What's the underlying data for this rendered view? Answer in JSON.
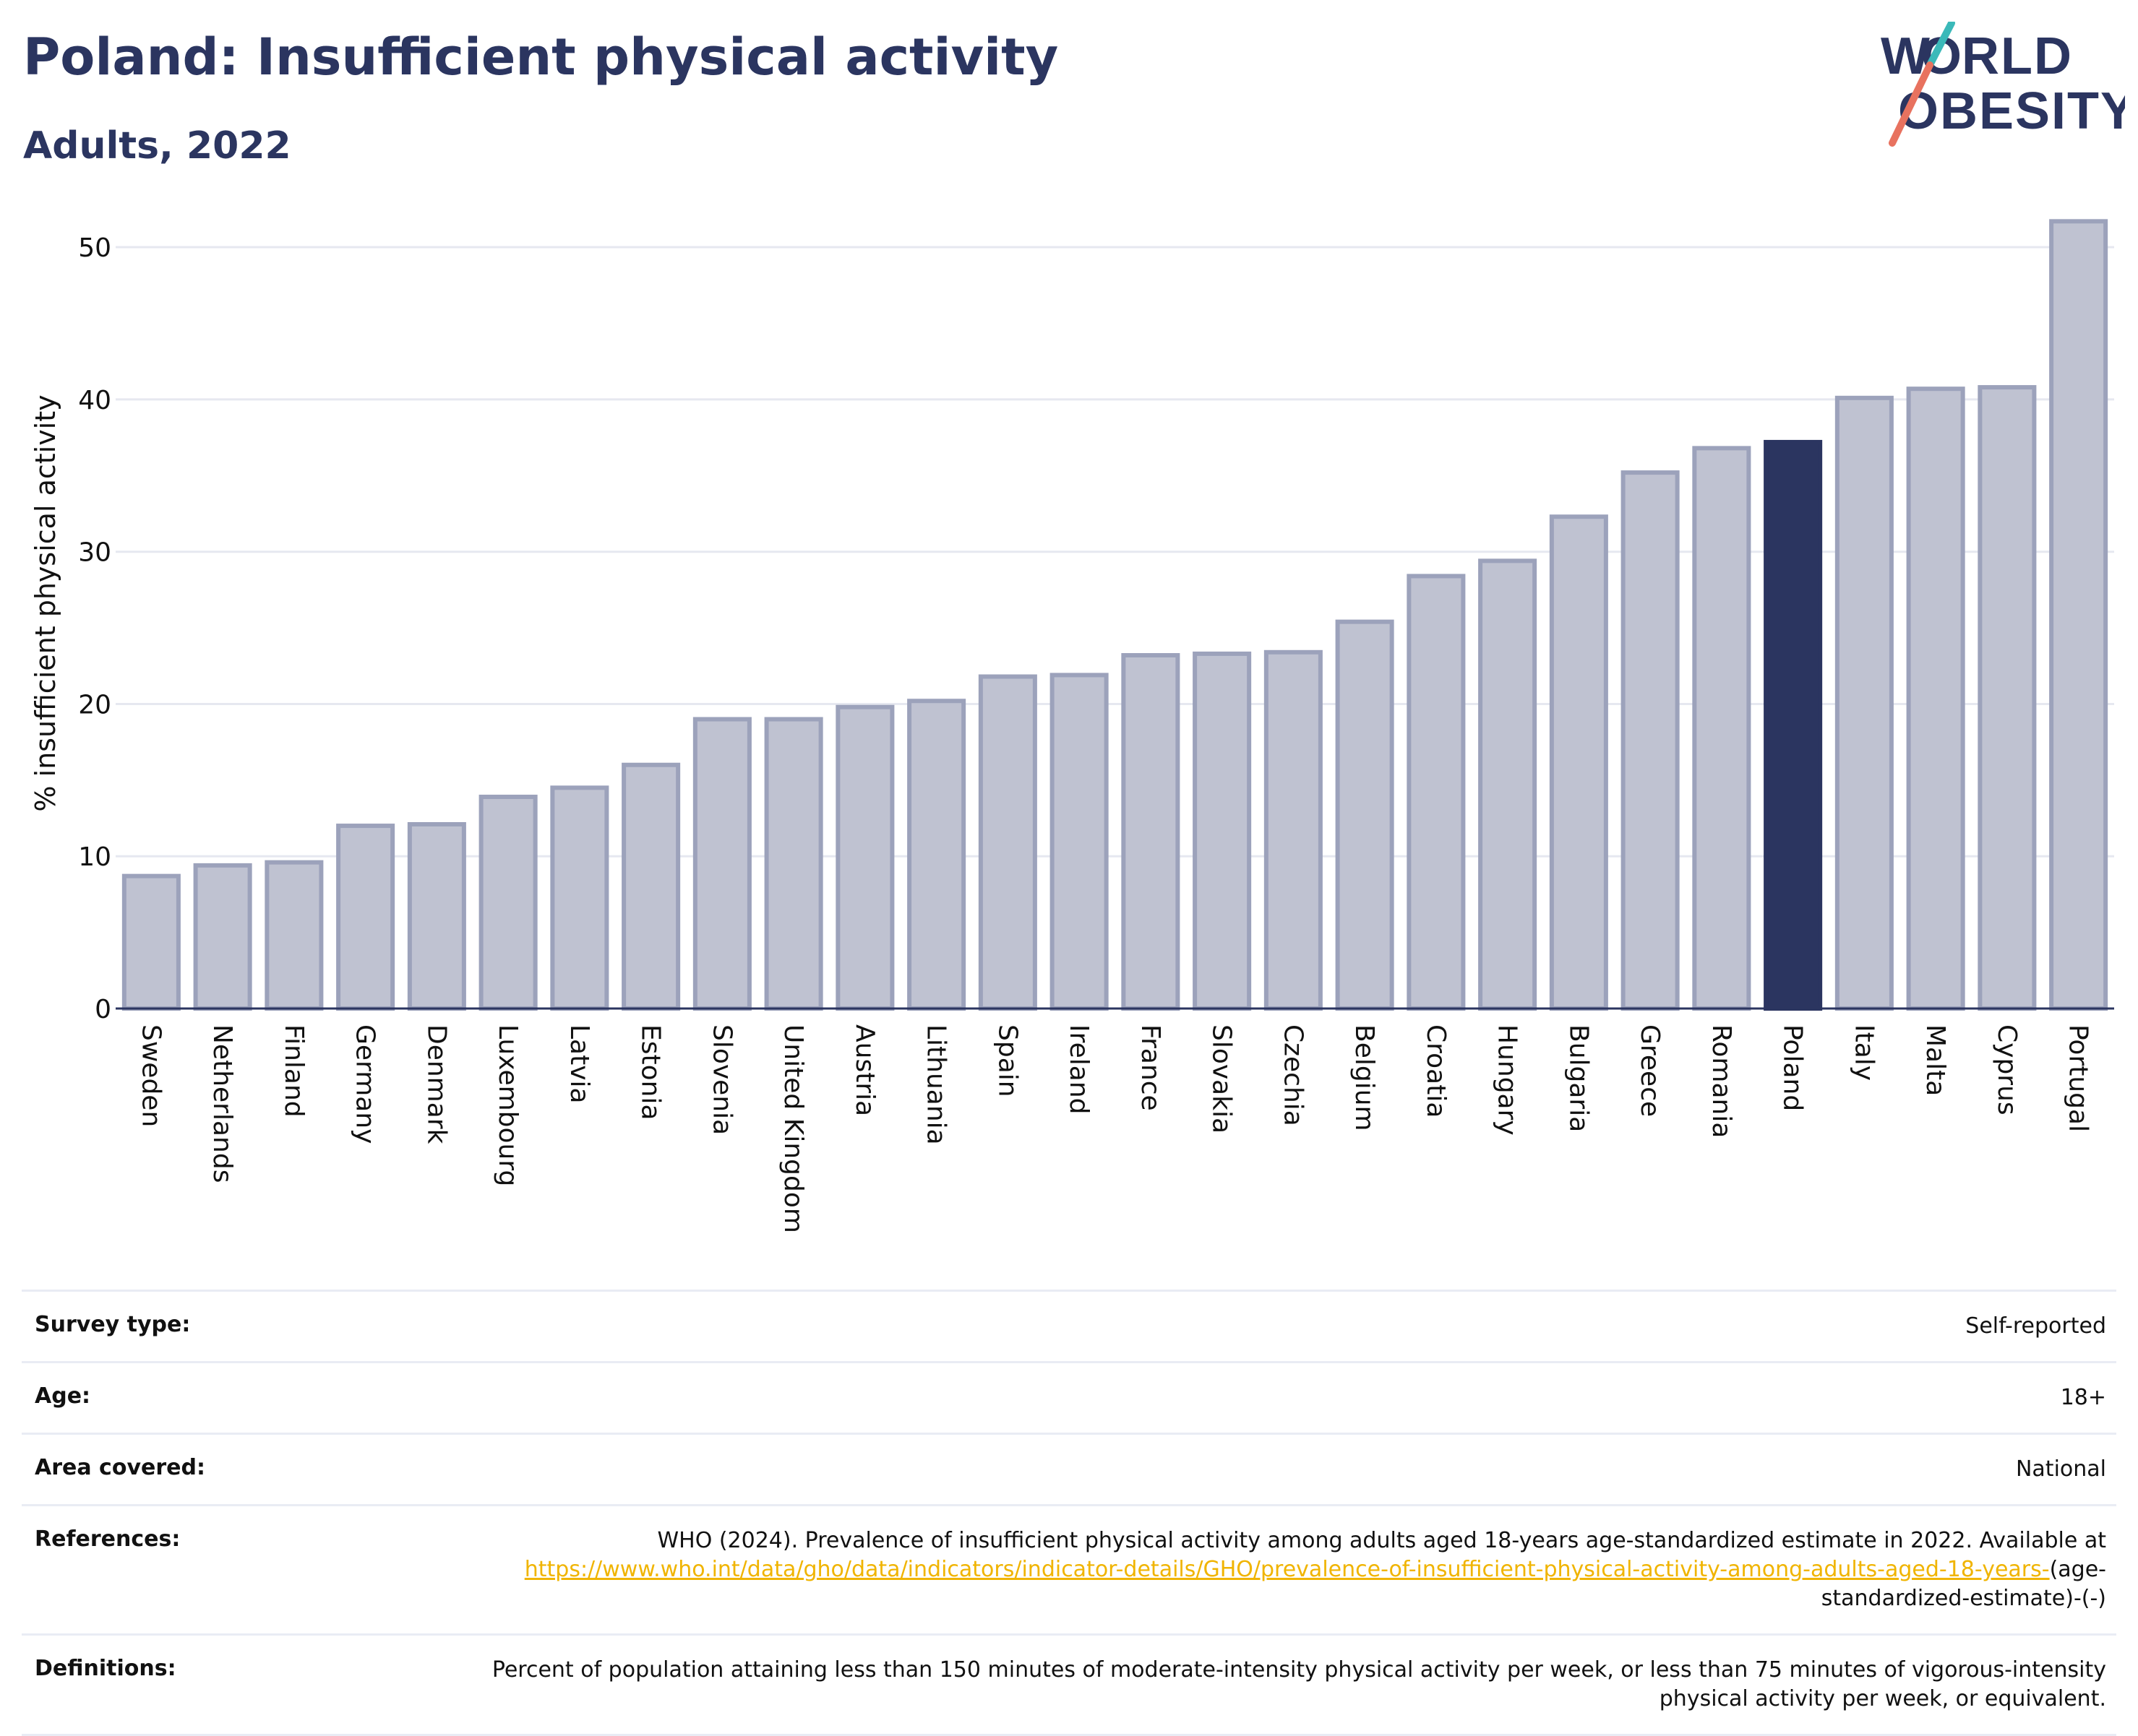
{
  "header": {
    "title": "Poland: Insufficient physical activity",
    "subtitle": "Adults, 2022"
  },
  "logo": {
    "line1": "WORLD",
    "line2": "OBESITY"
  },
  "colors": {
    "bar": "#bfc2d1",
    "bar_border": "#9ca2bb",
    "highlight": "#2b3560",
    "grid": "#e6e8f0",
    "axis": "#2b3560",
    "link": "#f0b400"
  },
  "chart_data": {
    "type": "bar",
    "ylabel": "% insufficient physical activity",
    "ylim": [
      0,
      52
    ],
    "yticks": [
      0,
      10,
      20,
      30,
      40,
      50
    ],
    "grid": true,
    "highlight": "Poland",
    "categories": [
      "Sweden",
      "Netherlands",
      "Finland",
      "Germany",
      "Denmark",
      "Luxembourg",
      "Latvia",
      "Estonia",
      "Slovenia",
      "United Kingdom",
      "Austria",
      "Lithuania",
      "Spain",
      "Ireland",
      "France",
      "Slovakia",
      "Czechia",
      "Belgium",
      "Croatia",
      "Hungary",
      "Bulgaria",
      "Greece",
      "Romania",
      "Poland",
      "Italy",
      "Malta",
      "Cyprus",
      "Portugal"
    ],
    "values": [
      8.7,
      9.4,
      9.6,
      12.0,
      12.1,
      13.9,
      14.5,
      16.0,
      19.0,
      19.0,
      19.8,
      20.2,
      21.8,
      21.9,
      23.2,
      23.3,
      23.4,
      25.4,
      28.4,
      29.4,
      32.3,
      35.2,
      36.8,
      37.2,
      40.1,
      40.7,
      40.8,
      51.7
    ]
  },
  "info": {
    "survey_type_label": "Survey type:",
    "survey_type_value": "Self-reported",
    "age_label": "Age:",
    "age_value": "18+",
    "area_label": "Area covered:",
    "area_value": "National",
    "references_label": "References:",
    "references_text": "WHO (2024). Prevalence of insufficient physical activity among adults aged 18-years age-standardized estimate in 2022. Available at",
    "references_link": "https://www.who.int/data/gho/data/indicators/indicator-details/GHO/prevalence-of-insufficient-physical-activity-among-adults-aged-18-years-",
    "references_suffix": "(age-standardized-estimate)-(-)",
    "definitions_label": "Definitions:",
    "definitions_text": "Percent of population attaining less than 150 minutes of moderate-intensity physical activity per week, or less than 75 minutes of vigorous-intensity physical activity per week, or equivalent."
  }
}
